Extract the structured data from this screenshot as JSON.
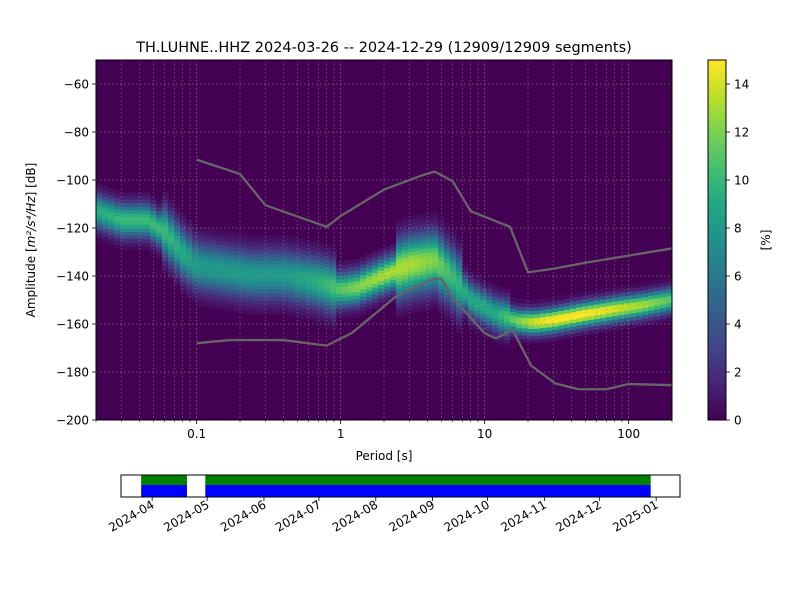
{
  "chart_data": [
    {
      "type": "heatmap",
      "subtype": "probabilistic-power-spectral-density",
      "title": "TH.LUHNE..HHZ   2024-03-26 -- 2024-12-29  (12909/12909 segments)",
      "xlabel": "Period [s]",
      "ylabel_main": "Amplitude [",
      "ylabel_math": "m²/s⁴/Hz",
      "ylabel_tail": "] [dB]",
      "x_scale": "log",
      "xlim": [
        0.02,
        200
      ],
      "ylim": [
        -200,
        -50
      ],
      "x_ticks": [
        {
          "value": 0.1,
          "label": "0.1"
        },
        {
          "value": 1,
          "label": "1"
        },
        {
          "value": 10,
          "label": "10"
        },
        {
          "value": 100,
          "label": "100"
        }
      ],
      "y_ticks": [
        {
          "value": -60,
          "label": "−60"
        },
        {
          "value": -80,
          "label": "−80"
        },
        {
          "value": -100,
          "label": "−100"
        },
        {
          "value": -120,
          "label": "−120"
        },
        {
          "value": -140,
          "label": "−140"
        },
        {
          "value": -160,
          "label": "−160"
        },
        {
          "value": -180,
          "label": "−180"
        },
        {
          "value": -200,
          "label": "−200"
        }
      ],
      "grid": true,
      "colormap": "viridis",
      "colorbar": {
        "label": "[%]",
        "range": [
          0,
          15
        ],
        "ticks": [
          {
            "value": 0,
            "label": "0"
          },
          {
            "value": 2,
            "label": "2"
          },
          {
            "value": 4,
            "label": "4"
          },
          {
            "value": 6,
            "label": "6"
          },
          {
            "value": 8,
            "label": "8"
          },
          {
            "value": 10,
            "label": "10"
          },
          {
            "value": 12,
            "label": "12"
          },
          {
            "value": 14,
            "label": "14"
          }
        ]
      },
      "density_ridge": {
        "period": [
          0.02,
          0.03,
          0.045,
          0.06,
          0.08,
          0.1,
          0.15,
          0.25,
          0.4,
          0.6,
          0.8,
          1.0,
          1.3,
          2.0,
          3.0,
          4.5,
          6.0,
          8.0,
          12,
          17,
          22,
          30,
          50,
          80,
          120,
          200
        ],
        "amplitude_db": [
          -113,
          -117,
          -117,
          -122,
          -131,
          -136,
          -138,
          -140,
          -140,
          -142,
          -144,
          -146,
          -145,
          -140,
          -136,
          -134,
          -141,
          -150,
          -156,
          -159,
          -159.5,
          -158.5,
          -156,
          -154,
          -152.5,
          -150
        ],
        "peak_percent": [
          9,
          10,
          10,
          10,
          9,
          8,
          8,
          8,
          8,
          9,
          10,
          11,
          12,
          13,
          13,
          12,
          10,
          9,
          9,
          12,
          14,
          15,
          15,
          14,
          13,
          11
        ]
      },
      "series": [
        {
          "name": "",
          "color": "#666666",
          "x": [
            0.1,
            0.2,
            0.3,
            0.8,
            1.0,
            2.0,
            3.7,
            4.5,
            6.0,
            8.0,
            15,
            20,
            30,
            50,
            100,
            200
          ],
          "y": [
            -91.5,
            -97.5,
            -110.5,
            -119.5,
            -115,
            -104,
            -98,
            -96.5,
            -100.5,
            -113,
            -119.5,
            -138.5,
            -137,
            -134.5,
            -131.5,
            -128.5
          ]
        },
        {
          "name": "",
          "color": "#666666",
          "x": [
            0.1,
            0.17,
            0.4,
            0.8,
            1.2,
            2.4,
            4.2,
            5.0,
            6.0,
            10,
            12,
            15.6,
            21,
            31,
            45,
            70,
            100,
            200
          ],
          "y": [
            -168,
            -166.7,
            -166.7,
            -169,
            -163.7,
            -148.7,
            -141.6,
            -141,
            -149.2,
            -163.8,
            -166,
            -162.4,
            -177.3,
            -184.8,
            -187.2,
            -187.2,
            -185,
            -185.5
          ]
        }
      ]
    },
    {
      "type": "timeline",
      "title": "",
      "date_range": [
        "2024-03-15",
        "2025-01-14"
      ],
      "data_coverage": [
        {
          "start": "2024-03-26",
          "end": "2024-04-20"
        },
        {
          "start": "2024-04-30",
          "end": "2024-12-29"
        }
      ],
      "coverage_colors": {
        "processed": "#0000ff",
        "available": "#008000"
      },
      "x_ticks": [
        "2024-04",
        "2024-05",
        "2024-06",
        "2024-07",
        "2024-08",
        "2024-09",
        "2024-10",
        "2024-11",
        "2024-12",
        "2025-01"
      ]
    }
  ]
}
